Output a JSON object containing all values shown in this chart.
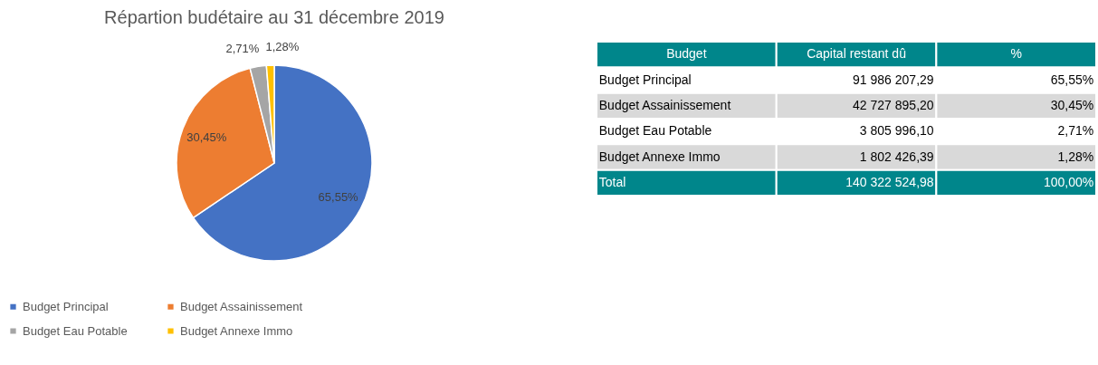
{
  "chart_data": [
    {
      "type": "pie",
      "title": "Répartion budétaire au 31 décembre 2019",
      "categories": [
        "Budget Principal",
        "Budget  Assainissement",
        "Budget Eau Potable",
        "Budget Annexe Immo"
      ],
      "values": [
        65.55,
        30.45,
        2.71,
        1.28
      ],
      "colors": [
        "#4472c4",
        "#ed7d31",
        "#a5a5a5",
        "#ffc000"
      ],
      "value_labels": [
        "65,55%",
        "30,45%",
        "2,71%",
        "1,28%"
      ],
      "legend": "bottom"
    },
    {
      "type": "other",
      "annotations": [
        "Budget",
        "Capital restant dû",
        "%",
        "Budget Principal",
        "91 986 207,29",
        "65,55%",
        "Budget  Assainissement",
        "42 727 895,20",
        "30,45%",
        "Budget Eau Potable",
        "3 805 996,10",
        "2,71%",
        "Budget Annexe Immo",
        "1 802 426,39",
        "1,28%",
        "Total",
        "140 322 524,98",
        "100,00%"
      ]
    }
  ]
}
